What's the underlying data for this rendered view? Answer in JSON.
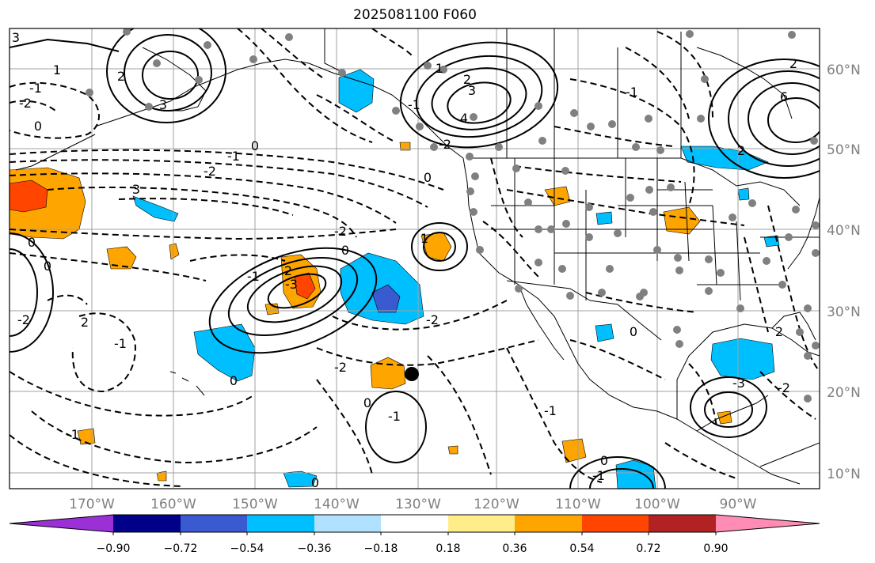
{
  "title": "2025081100 F060",
  "map": {
    "lat_labels": [
      "10°N",
      "20°N",
      "30°N",
      "40°N",
      "50°N",
      "60°N"
    ],
    "lon_labels": [
      "170°W",
      "160°W",
      "150°W",
      "140°W",
      "130°W",
      "120°W",
      "110°W",
      "100°W",
      "90°W"
    ],
    "gridlines": true,
    "contour_line_color": "#000000",
    "coast_color": "#000000",
    "station_color": "#808080",
    "storm_marker_color": "#000000",
    "contour_labels": [
      "3",
      "1",
      "-1",
      "-2",
      "0",
      "2",
      "3",
      "-1",
      "0",
      "-2",
      "1",
      "2",
      "3",
      "4",
      "-1",
      "-2",
      "6",
      "2",
      "-1",
      "3",
      "-2",
      "-1",
      "2",
      "-3",
      "0",
      "-2",
      "0",
      "-2",
      "2",
      "-1",
      "-1",
      "-2",
      "0",
      "0",
      "-1",
      "1",
      "0",
      "0",
      "-1",
      "0",
      "0",
      "-1",
      "2",
      "0",
      "-3",
      "-2",
      "2"
    ]
  },
  "colorbar": {
    "ticks": [
      "−0.90",
      "−0.72",
      "−0.54",
      "−0.36",
      "−0.18",
      "0.18",
      "0.36",
      "0.54",
      "0.72",
      "0.90"
    ],
    "colors": [
      "#9b30d6",
      "#00008b",
      "#3a5bcf",
      "#00bfff",
      "#b0e2ff",
      "#ffffff",
      "#ffed8a",
      "#ffa500",
      "#ff4500",
      "#b22222",
      "#ff8cb4"
    ]
  }
}
